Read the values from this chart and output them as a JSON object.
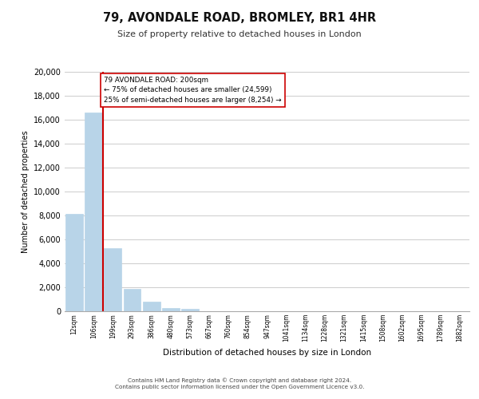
{
  "title": "79, AVONDALE ROAD, BROMLEY, BR1 4HR",
  "subtitle": "Size of property relative to detached houses in London",
  "xlabel": "Distribution of detached houses by size in London",
  "ylabel": "Number of detached properties",
  "bin_labels": [
    "12sqm",
    "106sqm",
    "199sqm",
    "293sqm",
    "386sqm",
    "480sqm",
    "573sqm",
    "667sqm",
    "760sqm",
    "854sqm",
    "947sqm",
    "1041sqm",
    "1134sqm",
    "1228sqm",
    "1321sqm",
    "1415sqm",
    "1508sqm",
    "1602sqm",
    "1695sqm",
    "1789sqm",
    "1882sqm"
  ],
  "bar_values": [
    8150,
    16600,
    5300,
    1850,
    800,
    300,
    200,
    0,
    0,
    0,
    0,
    0,
    0,
    0,
    0,
    0,
    0,
    0,
    0,
    0,
    0
  ],
  "bar_color": "#b8d4e8",
  "marker_color": "#cc0000",
  "annotation_line1": "79 AVONDALE ROAD: 200sqm",
  "annotation_line2": "← 75% of detached houses are smaller (24,599)",
  "annotation_line3": "25% of semi-detached houses are larger (8,254) →",
  "ylim": [
    0,
    20000
  ],
  "yticks": [
    0,
    2000,
    4000,
    6000,
    8000,
    10000,
    12000,
    14000,
    16000,
    18000,
    20000
  ],
  "grid_color": "#cccccc",
  "background_color": "#ffffff",
  "footer_line1": "Contains HM Land Registry data © Crown copyright and database right 2024.",
  "footer_line2": "Contains public sector information licensed under the Open Government Licence v3.0.",
  "box_facecolor": "#ffffff",
  "box_edgecolor": "#cc0000",
  "red_line_x": 1.5
}
